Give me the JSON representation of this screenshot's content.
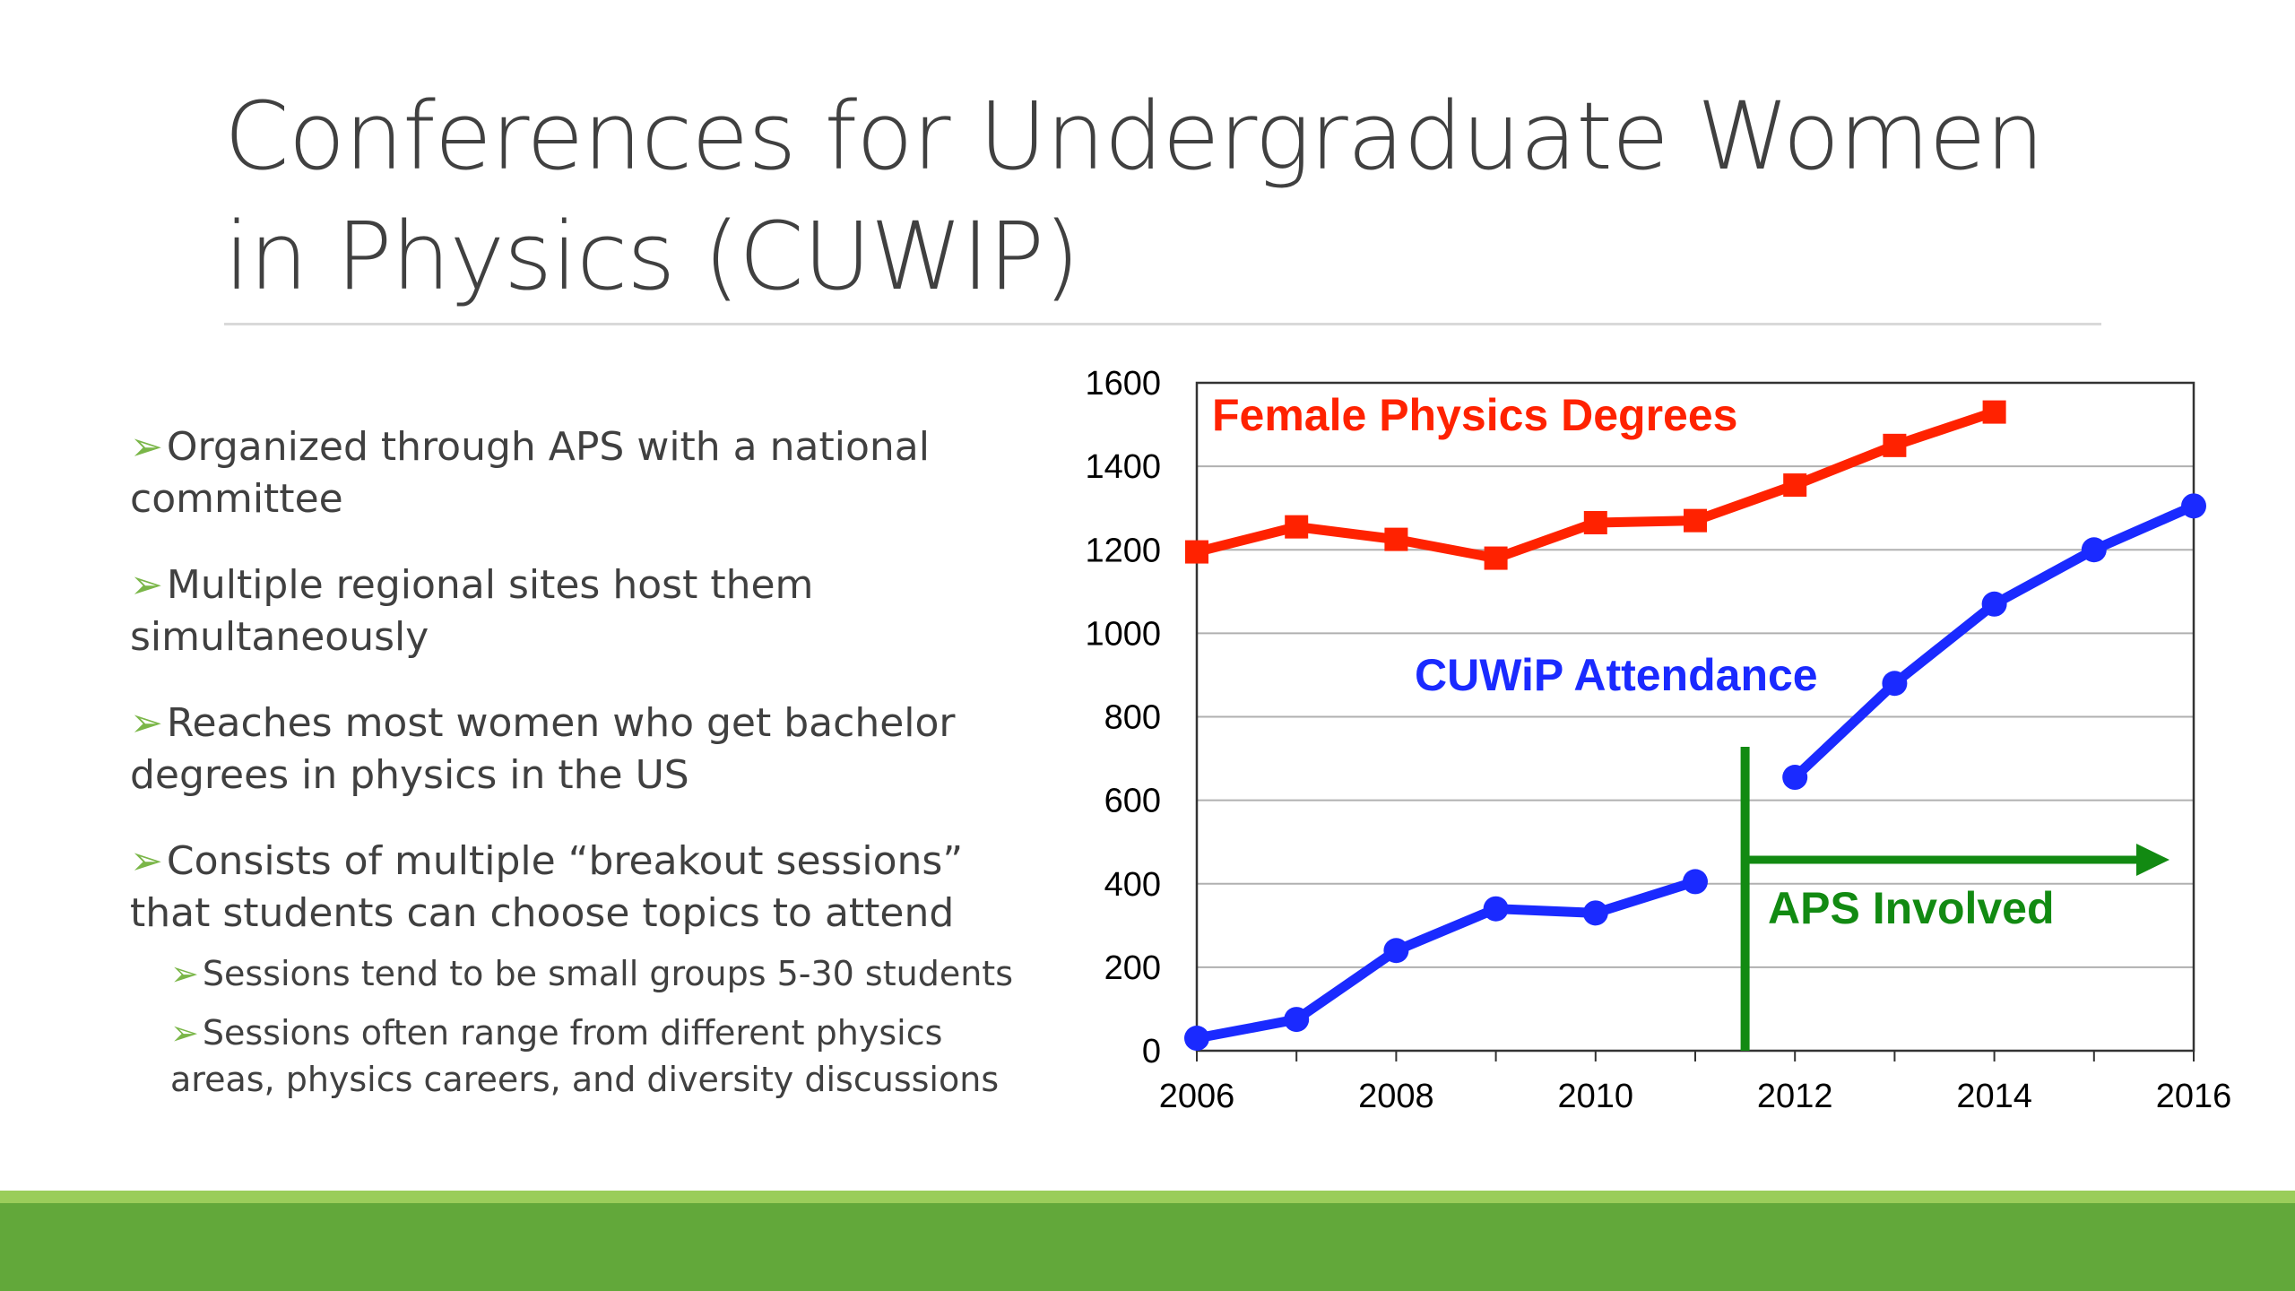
{
  "slide": {
    "title": "Conferences for Undergraduate Women in Physics (CUWIP)",
    "bullet_marker": "➢",
    "bullets": [
      {
        "text": "Organized through APS with a national committee"
      },
      {
        "text": "Multiple regional sites host them simultaneously"
      },
      {
        "text": "Reaches most women who get bachelor degrees in physics in the US"
      },
      {
        "text": "Consists of multiple “breakout sessions” that students can choose topics to attend"
      }
    ],
    "sub_bullets": [
      {
        "text": "Sessions tend to be small groups 5-30 students"
      },
      {
        "text": "Sessions often range from different physics areas, physics careers, and diversity discussions"
      }
    ],
    "colors": {
      "accent_green": "#7ab648",
      "band_dark": "#62a83a",
      "band_light": "#9acd5a"
    }
  },
  "chart_data": {
    "type": "line",
    "title": "",
    "xlabel": "",
    "ylabel": "",
    "xlim": [
      2006,
      2016
    ],
    "ylim": [
      0,
      1600
    ],
    "x_ticks": [
      2006,
      2008,
      2010,
      2012,
      2014,
      2016
    ],
    "y_ticks": [
      0,
      200,
      400,
      600,
      800,
      1000,
      1200,
      1400,
      1600
    ],
    "grid": "horizontal",
    "series": [
      {
        "name": "Female Physics Degrees",
        "color": "#ff2200",
        "marker": "square",
        "segments": [
          {
            "x": [
              2006,
              2007,
              2008,
              2009,
              2010,
              2011,
              2012,
              2013,
              2014
            ],
            "y": [
              1195,
              1255,
              1225,
              1180,
              1265,
              1270,
              1355,
              1450,
              1530
            ]
          }
        ]
      },
      {
        "name": "CUWiP Attendance",
        "color": "#1a2aff",
        "marker": "circle",
        "segments": [
          {
            "x": [
              2006,
              2007,
              2008,
              2009,
              2010,
              2011
            ],
            "y": [
              30,
              75,
              240,
              340,
              330,
              405
            ]
          },
          {
            "x": [
              2012,
              2013,
              2014,
              2015,
              2016
            ],
            "y": [
              655,
              880,
              1070,
              1200,
              1305
            ]
          }
        ]
      }
    ],
    "annotations": [
      {
        "text": "APS Involved",
        "color": "#128a12",
        "at_x": 2011.5
      }
    ]
  }
}
